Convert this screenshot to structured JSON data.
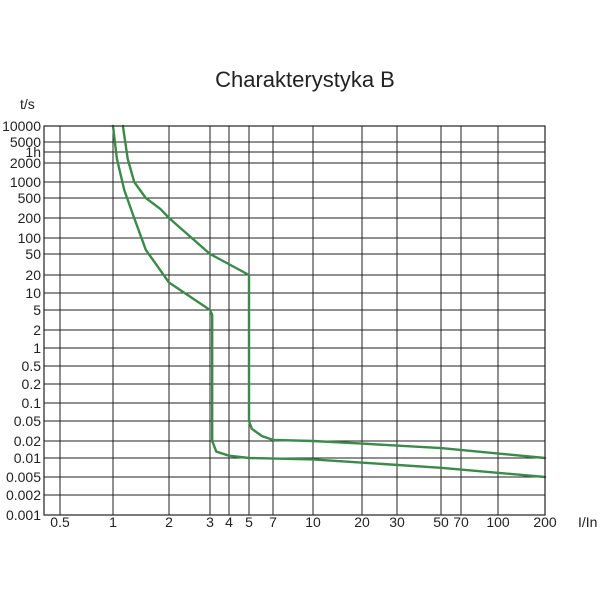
{
  "chart_data": {
    "type": "line",
    "title": "Charakterystyka B",
    "xlabel": "I/In",
    "ylabel": "t/s",
    "x_scale": "custom-compressed",
    "y_scale": "custom-compressed",
    "xlim": [
      0.5,
      200
    ],
    "ylim": [
      0.001,
      10000
    ],
    "grid": true,
    "line_color": "#3a8a4a",
    "x_ticks": [
      {
        "value": 0.5,
        "label": "0.5"
      },
      {
        "value": 1,
        "label": "1"
      },
      {
        "value": 2,
        "label": "2"
      },
      {
        "value": 3,
        "label": "3"
      },
      {
        "value": 4,
        "label": "4"
      },
      {
        "value": 5,
        "label": "5"
      },
      {
        "value": 7,
        "label": "7"
      },
      {
        "value": 10,
        "label": "10"
      },
      {
        "value": 20,
        "label": "20"
      },
      {
        "value": 30,
        "label": "30"
      },
      {
        "value": 50,
        "label": "50"
      },
      {
        "value": 70,
        "label": "70"
      },
      {
        "value": 100,
        "label": "100"
      },
      {
        "value": 200,
        "label": "200"
      }
    ],
    "y_ticks": [
      {
        "value": 10000,
        "label": "10000"
      },
      {
        "value": 5000,
        "label": "5000"
      },
      {
        "value": 3600,
        "label": "1h"
      },
      {
        "value": 2000,
        "label": "2000"
      },
      {
        "value": 1000,
        "label": "1000"
      },
      {
        "value": 500,
        "label": "500"
      },
      {
        "value": 200,
        "label": "200"
      },
      {
        "value": 100,
        "label": "100"
      },
      {
        "value": 50,
        "label": "50"
      },
      {
        "value": 20,
        "label": "20"
      },
      {
        "value": 10,
        "label": "10"
      },
      {
        "value": 5,
        "label": "5"
      },
      {
        "value": 2,
        "label": "2"
      },
      {
        "value": 1,
        "label": "1"
      },
      {
        "value": 0.5,
        "label": "0.5"
      },
      {
        "value": 0.2,
        "label": "0.2"
      },
      {
        "value": 0.1,
        "label": "0.1"
      },
      {
        "value": 0.05,
        "label": "0.05"
      },
      {
        "value": 0.02,
        "label": "0.02"
      },
      {
        "value": 0.01,
        "label": "0.01"
      },
      {
        "value": 0.005,
        "label": "0.005"
      },
      {
        "value": 0.002,
        "label": "0.002"
      },
      {
        "value": 0.001,
        "label": "0.001"
      }
    ],
    "series": [
      {
        "points": [
          [
            1.13,
            10000
          ],
          [
            1.2,
            2500
          ],
          [
            1.3,
            1000
          ],
          [
            1.5,
            500
          ],
          [
            1.8,
            300
          ],
          [
            2,
            200
          ],
          [
            3,
            50
          ],
          [
            5,
            20
          ],
          [
            5,
            0.05
          ],
          [
            5.2,
            0.035
          ],
          [
            6,
            0.025
          ],
          [
            7,
            0.021
          ],
          [
            10,
            0.02
          ],
          [
            20,
            0.018
          ],
          [
            50,
            0.015
          ],
          [
            200,
            0.01
          ]
        ]
      },
      {
        "points": [
          [
            1,
            10000
          ],
          [
            1.05,
            2500
          ],
          [
            1.15,
            700
          ],
          [
            1.3,
            200
          ],
          [
            1.5,
            60
          ],
          [
            2,
            15
          ],
          [
            3,
            5
          ],
          [
            3.1,
            4
          ],
          [
            3.1,
            0.02
          ],
          [
            3.3,
            0.013
          ],
          [
            4,
            0.011
          ],
          [
            5,
            0.01
          ],
          [
            10,
            0.0095
          ],
          [
            50,
            0.007
          ],
          [
            200,
            0.005
          ]
        ]
      }
    ]
  }
}
